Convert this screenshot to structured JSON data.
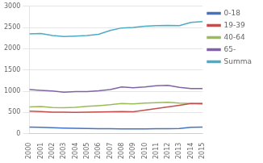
{
  "chart_data": {
    "type": "line",
    "x": [
      2000,
      2001,
      2002,
      2003,
      2004,
      2005,
      2006,
      2007,
      2008,
      2009,
      2010,
      2011,
      2012,
      2013,
      2014,
      2015
    ],
    "series": [
      {
        "name": "0-18",
        "color": "#4472C4",
        "values": [
          155,
          150,
          140,
          130,
          125,
          120,
          118,
          115,
          112,
          110,
          112,
          115,
          115,
          120,
          150,
          155
        ]
      },
      {
        "name": "19-39",
        "color": "#C0504D",
        "values": [
          530,
          520,
          505,
          505,
          500,
          505,
          510,
          515,
          520,
          515,
          555,
          590,
          630,
          670,
          710,
          700
        ]
      },
      {
        "name": "40-64",
        "color": "#9BBB59",
        "values": [
          630,
          640,
          615,
          610,
          620,
          645,
          660,
          680,
          710,
          700,
          720,
          730,
          740,
          720,
          710,
          720
        ]
      },
      {
        "name": "65-",
        "color": "#8064A2",
        "values": [
          1040,
          1020,
          1005,
          975,
          990,
          990,
          1010,
          1040,
          1100,
          1080,
          1100,
          1130,
          1140,
          1090,
          1060,
          1060
        ]
      },
      {
        "name": "Summa",
        "color": "#4BACC6",
        "values": [
          2350,
          2360,
          2310,
          2290,
          2300,
          2310,
          2340,
          2430,
          2490,
          2500,
          2530,
          2545,
          2550,
          2545,
          2620,
          2640
        ]
      }
    ],
    "xlim": [
      2000,
      2015
    ],
    "xticks": [
      2000,
      2001,
      2002,
      2003,
      2004,
      2005,
      2006,
      2007,
      2008,
      2009,
      2010,
      2011,
      2012,
      2013,
      2014,
      2015
    ],
    "ylim": [
      0,
      3000
    ],
    "yticks": [
      0,
      500,
      1000,
      1500,
      2000,
      2500,
      3000
    ],
    "grid": "y",
    "legend": "right"
  }
}
